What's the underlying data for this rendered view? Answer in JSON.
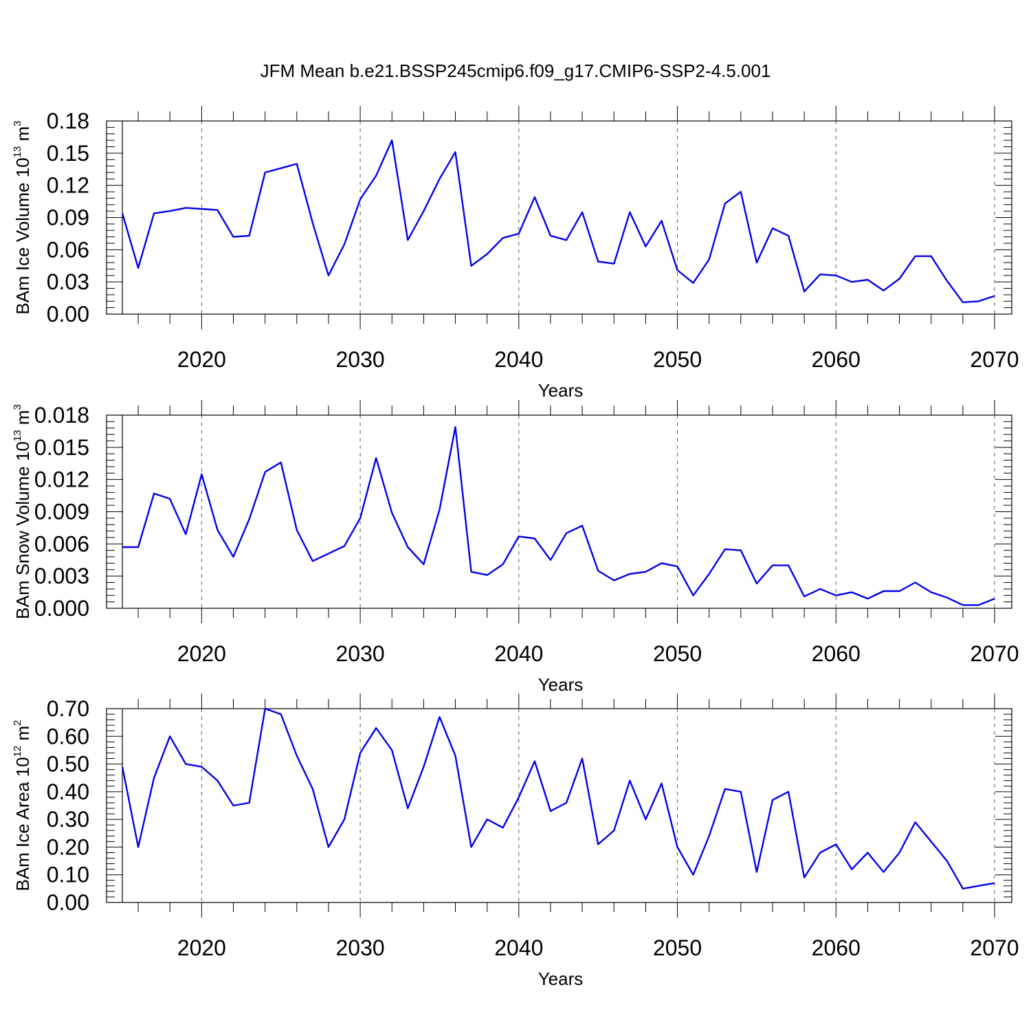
{
  "figure": {
    "title": "JFM Mean b.e21.BSSP245cmip6.f09_g17.CMIP6-SSP2-4.5.001"
  },
  "chart_data": [
    {
      "type": "line",
      "title": "",
      "xlabel": "Years",
      "ylabel": {
        "main": "BAm Ice Volume 10",
        "exp": "13",
        "unit": " m",
        "unit_exp": "3"
      },
      "xlim": [
        2015,
        2070
      ],
      "ylim": [
        0,
        0.18
      ],
      "xticks": [
        2020,
        2030,
        2040,
        2050,
        2060,
        2070
      ],
      "yticks": [
        "0.00",
        "0.03",
        "0.06",
        "0.09",
        "0.12",
        "0.15",
        "0.18"
      ],
      "grid": "vertical dashed at major x ticks",
      "color": "#0000ee",
      "series": [
        {
          "x": [
            2015,
            2016,
            2017,
            2018,
            2019,
            2020,
            2021,
            2022,
            2023,
            2024,
            2025,
            2026,
            2027,
            2028,
            2029,
            2030,
            2031,
            2032,
            2033,
            2034,
            2035,
            2036,
            2037,
            2038,
            2039,
            2040,
            2041,
            2042,
            2043,
            2044,
            2045,
            2046,
            2047,
            2048,
            2049,
            2050,
            2051,
            2052,
            2053,
            2054,
            2055,
            2056,
            2057,
            2058,
            2059,
            2060,
            2061,
            2062,
            2063,
            2064,
            2065,
            2066,
            2067,
            2068,
            2069,
            2070
          ],
          "values": [
            0.094,
            0.043,
            0.094,
            0.096,
            0.099,
            0.098,
            0.097,
            0.072,
            0.073,
            0.132,
            0.136,
            0.14,
            0.085,
            0.036,
            0.065,
            0.107,
            0.129,
            0.162,
            0.069,
            0.096,
            0.126,
            0.151,
            0.045,
            0.056,
            0.071,
            0.075,
            0.109,
            0.073,
            0.069,
            0.095,
            0.049,
            0.047,
            0.095,
            0.063,
            0.087,
            0.041,
            0.029,
            0.051,
            0.103,
            0.114,
            0.048,
            0.08,
            0.073,
            0.021,
            0.037,
            0.036,
            0.03,
            0.032,
            0.022,
            0.033,
            0.054,
            0.054,
            0.031,
            0.011,
            0.012,
            0.017
          ]
        }
      ]
    },
    {
      "type": "line",
      "title": "",
      "xlabel": "Years",
      "ylabel": {
        "main": "BAm Snow Volume 10",
        "exp": "13",
        "unit": " m",
        "unit_exp": "3"
      },
      "xlim": [
        2015,
        2070
      ],
      "ylim": [
        0,
        0.018
      ],
      "xticks": [
        2020,
        2030,
        2040,
        2050,
        2060,
        2070
      ],
      "yticks": [
        "0.000",
        "0.003",
        "0.006",
        "0.009",
        "0.012",
        "0.015",
        "0.018"
      ],
      "grid": "vertical dashed at major x ticks",
      "color": "#0000ee",
      "series": [
        {
          "x": [
            2015,
            2016,
            2017,
            2018,
            2019,
            2020,
            2021,
            2022,
            2023,
            2024,
            2025,
            2026,
            2027,
            2028,
            2029,
            2030,
            2031,
            2032,
            2033,
            2034,
            2035,
            2036,
            2037,
            2038,
            2039,
            2040,
            2041,
            2042,
            2043,
            2044,
            2045,
            2046,
            2047,
            2048,
            2049,
            2050,
            2051,
            2052,
            2053,
            2054,
            2055,
            2056,
            2057,
            2058,
            2059,
            2060,
            2061,
            2062,
            2063,
            2064,
            2065,
            2066,
            2067,
            2068,
            2069,
            2070
          ],
          "values": [
            0.0057,
            0.0057,
            0.0107,
            0.0102,
            0.0069,
            0.0125,
            0.0073,
            0.0048,
            0.0083,
            0.0127,
            0.0136,
            0.0073,
            0.0044,
            0.0051,
            0.0058,
            0.0084,
            0.014,
            0.0089,
            0.0057,
            0.0041,
            0.0092,
            0.0169,
            0.0034,
            0.0031,
            0.0041,
            0.0067,
            0.0065,
            0.0045,
            0.007,
            0.0077,
            0.0035,
            0.0026,
            0.0032,
            0.0034,
            0.0042,
            0.0039,
            0.0012,
            0.0032,
            0.0055,
            0.0054,
            0.0023,
            0.004,
            0.004,
            0.0011,
            0.0018,
            0.0012,
            0.0015,
            0.0009,
            0.0016,
            0.0016,
            0.0024,
            0.0015,
            0.001,
            0.0003,
            0.0003,
            0.0009
          ]
        }
      ]
    },
    {
      "type": "line",
      "title": "",
      "xlabel": "Years",
      "ylabel": {
        "main": "BAm Ice Area 10",
        "exp": "12",
        "unit": " m",
        "unit_exp": "2"
      },
      "xlim": [
        2015,
        2070
      ],
      "ylim": [
        0,
        0.7
      ],
      "xticks": [
        2020,
        2030,
        2040,
        2050,
        2060,
        2070
      ],
      "yticks": [
        "0.00",
        "0.10",
        "0.20",
        "0.30",
        "0.40",
        "0.50",
        "0.60",
        "0.70"
      ],
      "grid": "vertical dashed at major x ticks",
      "color": "#0000ee",
      "series": [
        {
          "x": [
            2015,
            2016,
            2017,
            2018,
            2019,
            2020,
            2021,
            2022,
            2023,
            2024,
            2025,
            2026,
            2027,
            2028,
            2029,
            2030,
            2031,
            2032,
            2033,
            2034,
            2035,
            2036,
            2037,
            2038,
            2039,
            2040,
            2041,
            2042,
            2043,
            2044,
            2045,
            2046,
            2047,
            2048,
            2049,
            2050,
            2051,
            2052,
            2053,
            2054,
            2055,
            2056,
            2057,
            2058,
            2059,
            2060,
            2061,
            2062,
            2063,
            2064,
            2065,
            2066,
            2067,
            2068,
            2069,
            2070
          ],
          "values": [
            0.49,
            0.2,
            0.45,
            0.6,
            0.5,
            0.49,
            0.44,
            0.35,
            0.36,
            0.7,
            0.68,
            0.53,
            0.41,
            0.2,
            0.3,
            0.54,
            0.63,
            0.55,
            0.34,
            0.49,
            0.67,
            0.53,
            0.2,
            0.3,
            0.27,
            0.38,
            0.51,
            0.33,
            0.36,
            0.52,
            0.21,
            0.26,
            0.44,
            0.3,
            0.43,
            0.2,
            0.1,
            0.24,
            0.41,
            0.4,
            0.11,
            0.37,
            0.4,
            0.09,
            0.18,
            0.21,
            0.12,
            0.18,
            0.11,
            0.18,
            0.29,
            0.22,
            0.15,
            0.05,
            0.06,
            0.07
          ]
        }
      ]
    }
  ]
}
